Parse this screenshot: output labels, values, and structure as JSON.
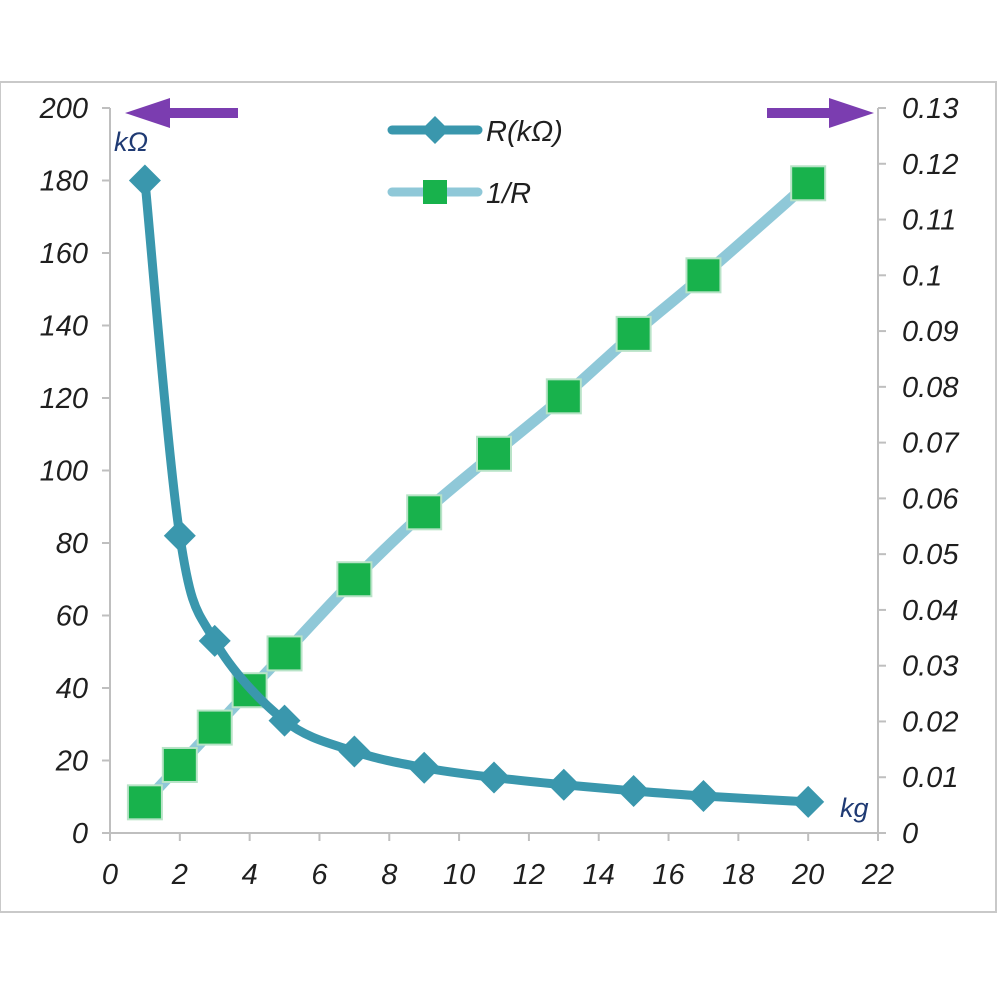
{
  "chart_data": {
    "type": "line",
    "x": [
      1,
      2,
      3,
      5,
      7,
      9,
      11,
      13,
      15,
      17,
      20
    ],
    "series": [
      {
        "name": "R(kΩ)",
        "axis": "left",
        "marker": "diamond",
        "color": "#3a97ad",
        "x": [
          1,
          2,
          3,
          5,
          7,
          9,
          11,
          13,
          15,
          17,
          20
        ],
        "values": [
          180,
          82,
          53,
          31,
          22.5,
          18,
          15.3,
          13.3,
          11.6,
          10.2,
          8.6
        ]
      },
      {
        "name": "1/R",
        "axis": "right",
        "marker": "square",
        "color": "#8fc8d8",
        "marker_color": "#18b24c",
        "x": [
          1,
          2,
          3,
          4,
          5,
          7,
          9,
          11,
          13,
          15,
          17,
          20
        ],
        "values": [
          0.0055,
          0.0122,
          0.0189,
          0.0256,
          0.0322,
          0.0455,
          0.0575,
          0.068,
          0.0783,
          0.0895,
          0.1,
          0.1165
        ]
      }
    ],
    "xlim": [
      0,
      22
    ],
    "ylim_left": [
      0,
      200
    ],
    "ylim_right": [
      0,
      0.13
    ],
    "x_ticks": [
      "0",
      "2",
      "4",
      "6",
      "8",
      "10",
      "12",
      "14",
      "16",
      "18",
      "20",
      "22"
    ],
    "y_ticks_left": [
      "0",
      "20",
      "40",
      "60",
      "80",
      "100",
      "120",
      "140",
      "160",
      "180",
      "200"
    ],
    "y_ticks_right": [
      "0",
      "0.01",
      "0.02",
      "0.03",
      "0.04",
      "0.05",
      "0.06",
      "0.07",
      "0.08",
      "0.09",
      "0.1",
      "0.11",
      "0.12",
      "0.13"
    ],
    "left_unit": "kΩ",
    "x_unit": "kg",
    "legend": [
      {
        "label": "R(kΩ)"
      },
      {
        "label": "1/R"
      }
    ],
    "legend_position": "top-center",
    "grid": false,
    "arrow_color": "#7b3db0"
  }
}
